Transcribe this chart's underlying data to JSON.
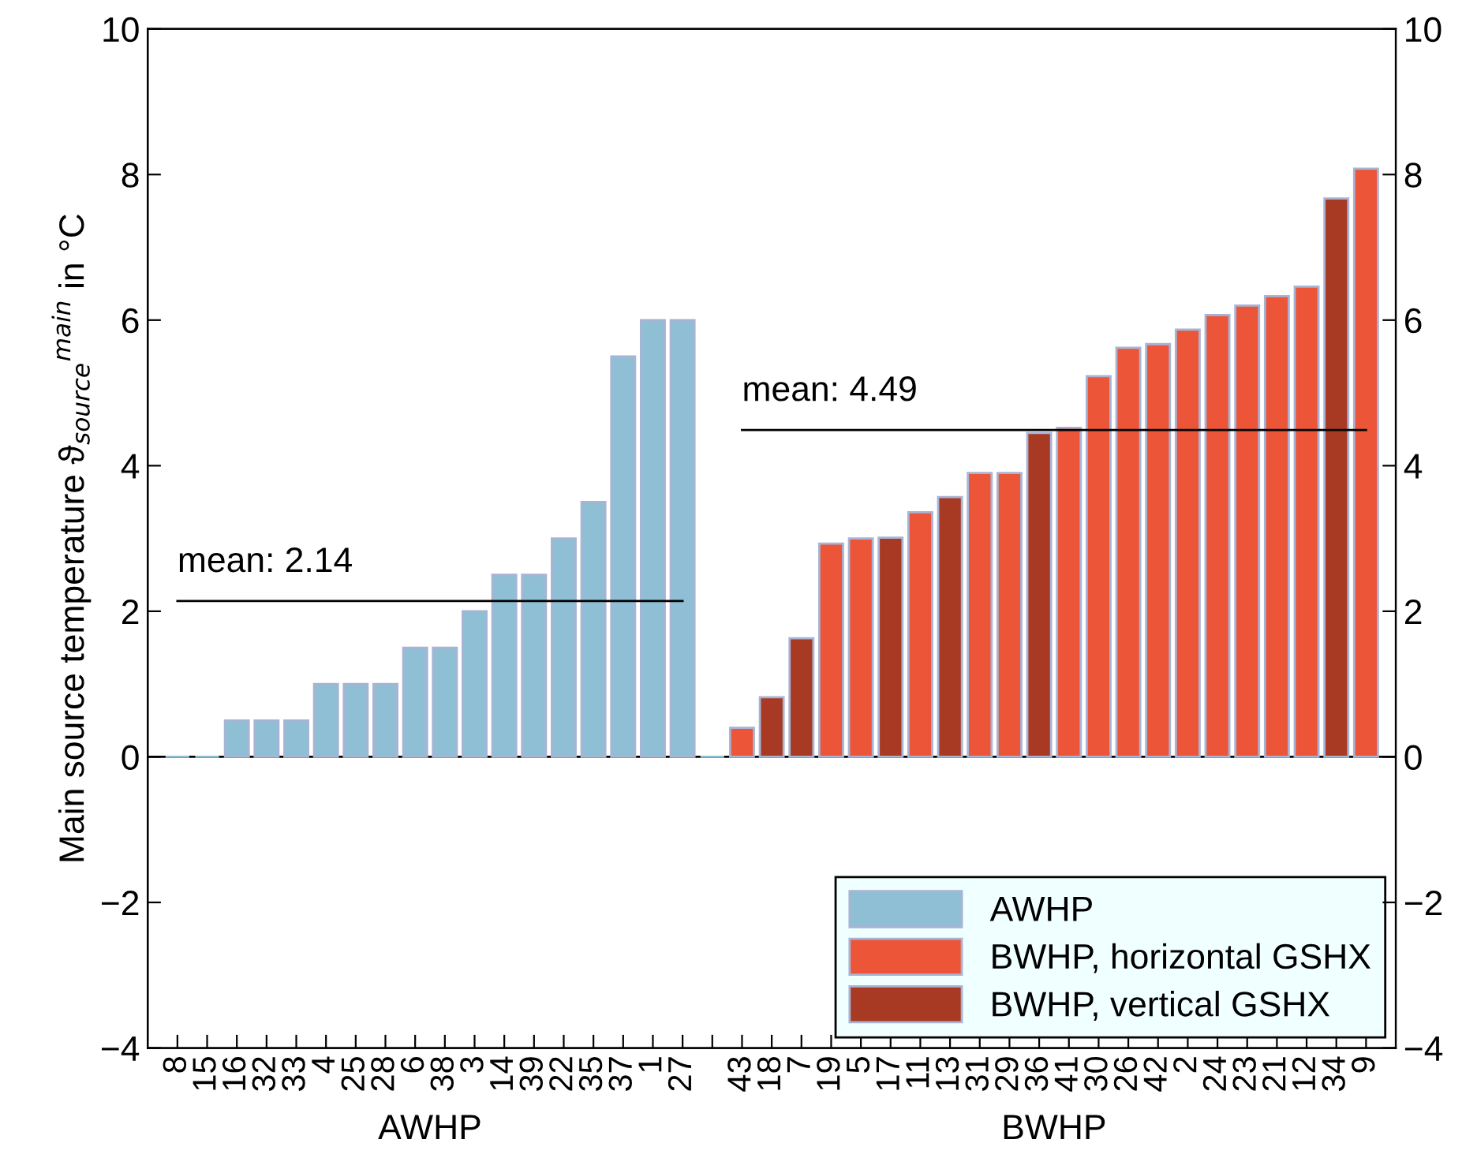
{
  "chart_data": {
    "type": "bar",
    "ylabel": "Main source temperature ϑ$_{source}$$^{main}$ in °C",
    "categories": [
      "8",
      "15",
      "16",
      "32",
      "33",
      "4",
      "25",
      "28",
      "6",
      "38",
      "3",
      "14",
      "39",
      "22",
      "35",
      "37",
      "1",
      "27",
      null,
      "43",
      "18",
      "7",
      "19",
      "5",
      "17",
      "11",
      "13",
      "31",
      "29",
      "36",
      "41",
      "30",
      "26",
      "42",
      "2",
      "24",
      "23",
      "21",
      "12",
      "34",
      "9"
    ],
    "series": [
      {
        "name": "AWHP",
        "color": "#8fbfd4",
        "values": [
          0,
          0,
          0.5,
          0.5,
          0.5,
          1,
          1,
          1,
          1.5,
          1.5,
          2,
          2.5,
          2.5,
          3,
          3.5,
          5.5,
          6,
          6,
          0,
          null,
          null,
          null,
          null,
          null,
          null,
          null,
          null,
          null,
          null,
          null,
          null,
          null,
          null,
          null,
          null,
          null,
          null,
          null,
          null,
          null,
          null
        ]
      },
      {
        "name": "BWHP, horizontal GSHX",
        "color": "#ec5538",
        "values": [
          null,
          null,
          null,
          null,
          null,
          null,
          null,
          null,
          null,
          null,
          null,
          null,
          null,
          null,
          null,
          null,
          null,
          null,
          null,
          0.4,
          null,
          null,
          2.93,
          3.0,
          null,
          3.36,
          null,
          3.9,
          3.9,
          null,
          4.52,
          5.23,
          5.62,
          5.67,
          5.87,
          6.07,
          6.2,
          6.33,
          6.46,
          null,
          8.08
        ]
      },
      {
        "name": "BWHP, vertical GSHX",
        "color": "#a83a24",
        "values": [
          null,
          null,
          null,
          null,
          null,
          null,
          null,
          null,
          null,
          null,
          null,
          null,
          null,
          null,
          null,
          null,
          null,
          null,
          null,
          null,
          0.82,
          1.63,
          null,
          null,
          3.01,
          null,
          3.57,
          null,
          null,
          4.45,
          null,
          null,
          null,
          null,
          null,
          null,
          null,
          null,
          null,
          7.67,
          null
        ]
      },
      {
        "type": "line",
        "color": "#000000",
        "values": [
          2.14,
          2.14,
          2.14,
          2.14,
          2.14,
          2.14,
          2.14,
          2.14,
          2.14,
          2.14,
          2.14,
          2.14,
          2.14,
          2.14,
          2.14,
          2.14,
          2.14,
          2.14,
          null,
          null,
          null,
          null,
          null,
          null,
          null,
          null,
          null,
          null,
          null,
          null,
          null,
          null,
          null,
          null,
          null,
          null,
          null,
          null,
          null,
          null,
          null
        ]
      },
      {
        "type": "line",
        "color": "#000000",
        "values": [
          null,
          null,
          null,
          null,
          null,
          null,
          null,
          null,
          null,
          null,
          null,
          null,
          null,
          null,
          null,
          null,
          null,
          null,
          null,
          4.49,
          4.49,
          4.49,
          4.49,
          4.49,
          4.49,
          4.49,
          4.49,
          4.49,
          4.49,
          4.49,
          4.49,
          4.49,
          4.49,
          4.49,
          4.49,
          4.49,
          4.49,
          4.49,
          4.49,
          4.49,
          4.49
        ]
      }
    ],
    "annotations": [
      {
        "text": "mean: 2.14",
        "x": "8",
        "y": 2.14
      },
      {
        "text": "mean: 4.49",
        "x": "43",
        "y": 4.49
      },
      "AWHP",
      "BWHP"
    ],
    "ylim": [
      -4,
      10
    ],
    "yticks": [
      {
        "value": -4,
        "label": "−4"
      },
      {
        "value": -2,
        "label": "−2"
      },
      0,
      2,
      4,
      6,
      8,
      10
    ],
    "y2lim": [
      -4,
      10
    ],
    "y2ticks": [
      {
        "value": -4,
        "label": "−4"
      },
      {
        "value": -2,
        "label": "−2"
      },
      0,
      2,
      4,
      6,
      8,
      10
    ],
    "legend": "bottom right",
    "grid": false
  }
}
